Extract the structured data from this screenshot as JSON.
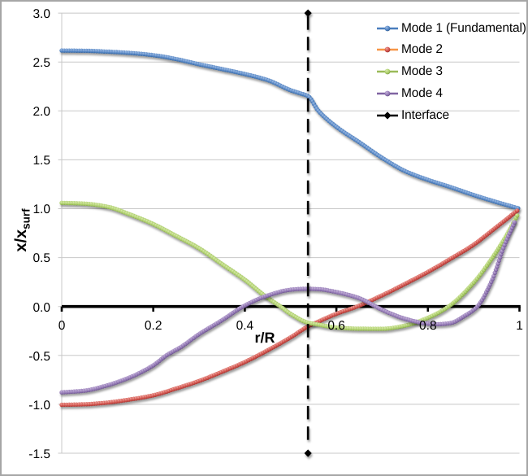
{
  "frame": {
    "background": "#ffffff",
    "border_color": "#a6a6a6"
  },
  "chart_data": {
    "type": "line",
    "xlabel": "r/R",
    "ylabel_main": "x/x",
    "ylabel_sub": "surf",
    "xlim": [
      0,
      1
    ],
    "ylim": [
      -1.5,
      3.0
    ],
    "grid": {
      "show": true,
      "color": "#c8c8c8",
      "y_step": 0.5
    },
    "axis_color": "#000000",
    "text_color": "#000000",
    "x_tick_values": [
      0,
      0.2,
      0.4,
      0.6,
      0.8,
      1
    ],
    "x_tick_labels": [
      "0",
      "0.2",
      "0.4",
      "0.6",
      "0.8",
      "1"
    ],
    "y_tick_values": [
      3.0,
      2.5,
      2.0,
      1.5,
      1.0,
      0.5,
      0.0,
      -0.5,
      -1.0,
      -1.5
    ],
    "y_tick_labels": [
      "3.0",
      "2.5",
      "2.0",
      "1.5",
      "1.0",
      "0.5",
      "0.0",
      "-0.5",
      "-1.0",
      "-1.5"
    ],
    "legend_position": "top-right",
    "marker_spacing_px": 2.85,
    "series": [
      {
        "name": "Mode 1 (Fundamental)",
        "line_color": "#4a7ebe",
        "marker_color": "#4a7ebe",
        "marker_light": "#84abdd",
        "marker_dark": "#30598c",
        "points": [
          [
            0,
            2.617
          ],
          [
            0.05,
            2.615
          ],
          [
            0.1,
            2.606
          ],
          [
            0.15,
            2.592
          ],
          [
            0.2,
            2.57
          ],
          [
            0.25,
            2.53
          ],
          [
            0.3,
            2.477
          ],
          [
            0.35,
            2.428
          ],
          [
            0.4,
            2.377
          ],
          [
            0.45,
            2.315
          ],
          [
            0.5,
            2.212
          ],
          [
            0.52,
            2.181
          ],
          [
            0.538,
            2.152
          ],
          [
            0.561,
            2.0
          ],
          [
            0.6,
            1.838
          ],
          [
            0.65,
            1.68
          ],
          [
            0.7,
            1.52
          ],
          [
            0.75,
            1.385
          ],
          [
            0.8,
            1.295
          ],
          [
            0.85,
            1.22
          ],
          [
            0.9,
            1.14
          ],
          [
            0.95,
            1.068
          ],
          [
            0.997,
            1.005
          ]
        ]
      },
      {
        "name": "Mode 2",
        "line_color": "#f79646",
        "marker_color": "#cc4b46",
        "marker_light": "#e2837d",
        "marker_dark": "#9c3834",
        "points": [
          [
            0,
            -1.005
          ],
          [
            0.05,
            -1.0
          ],
          [
            0.1,
            -0.982
          ],
          [
            0.15,
            -0.95
          ],
          [
            0.2,
            -0.908
          ],
          [
            0.25,
            -0.838
          ],
          [
            0.3,
            -0.761
          ],
          [
            0.35,
            -0.668
          ],
          [
            0.4,
            -0.567
          ],
          [
            0.45,
            -0.447
          ],
          [
            0.5,
            -0.315
          ],
          [
            0.538,
            -0.203
          ],
          [
            0.56,
            -0.155
          ],
          [
            0.6,
            -0.074
          ],
          [
            0.645,
            0
          ],
          [
            0.7,
            0.115
          ],
          [
            0.75,
            0.232
          ],
          [
            0.8,
            0.354
          ],
          [
            0.85,
            0.49
          ],
          [
            0.9,
            0.633
          ],
          [
            0.95,
            0.814
          ],
          [
            0.995,
            0.98
          ]
        ]
      },
      {
        "name": "Mode 3",
        "line_color": "#9bbb59",
        "marker_color": "#a8cc66",
        "marker_light": "#d2e8a3",
        "marker_dark": "#7a9a41",
        "points": [
          [
            0,
            1.06
          ],
          [
            0.05,
            1.052
          ],
          [
            0.1,
            1.02
          ],
          [
            0.15,
            0.94
          ],
          [
            0.2,
            0.843
          ],
          [
            0.25,
            0.722
          ],
          [
            0.3,
            0.596
          ],
          [
            0.35,
            0.435
          ],
          [
            0.4,
            0.274
          ],
          [
            0.445,
            0.105
          ],
          [
            0.478,
            0
          ],
          [
            0.5,
            -0.075
          ],
          [
            0.538,
            -0.165
          ],
          [
            0.561,
            -0.185
          ],
          [
            0.6,
            -0.215
          ],
          [
            0.65,
            -0.227
          ],
          [
            0.7,
            -0.228
          ],
          [
            0.75,
            -0.195
          ],
          [
            0.8,
            -0.115
          ],
          [
            0.845,
            0
          ],
          [
            0.9,
            0.245
          ],
          [
            0.928,
            0.414
          ],
          [
            0.97,
            0.715
          ],
          [
            0.995,
            0.93
          ]
        ]
      },
      {
        "name": "Mode 4",
        "line_color": "#8064a2",
        "marker_color": "#8e74b0",
        "marker_light": "#bcabd4",
        "marker_dark": "#644c85",
        "points": [
          [
            0,
            -0.878
          ],
          [
            0.05,
            -0.86
          ],
          [
            0.1,
            -0.805
          ],
          [
            0.15,
            -0.722
          ],
          [
            0.2,
            -0.601
          ],
          [
            0.23,
            -0.495
          ],
          [
            0.26,
            -0.415
          ],
          [
            0.3,
            -0.282
          ],
          [
            0.35,
            -0.14
          ],
          [
            0.396,
            0
          ],
          [
            0.445,
            0.105
          ],
          [
            0.5,
            0.172
          ],
          [
            0.53,
            0.181
          ],
          [
            0.56,
            0.178
          ],
          [
            0.6,
            0.148
          ],
          [
            0.65,
            0.085
          ],
          [
            0.686,
            0
          ],
          [
            0.7,
            -0.033
          ],
          [
            0.75,
            -0.125
          ],
          [
            0.79,
            -0.168
          ],
          [
            0.82,
            -0.181
          ],
          [
            0.85,
            -0.168
          ],
          [
            0.88,
            -0.096
          ],
          [
            0.9,
            -0.034
          ],
          [
            0.908,
            0
          ],
          [
            0.94,
            0.27
          ],
          [
            0.965,
            0.6
          ],
          [
            0.989,
            0.86
          ]
        ]
      }
    ],
    "interface_line": {
      "name": "Interface",
      "r": 0.538,
      "from": -1.5,
      "to": 3.0,
      "color": "#000000",
      "dash": [
        16.5,
        8.7
      ],
      "width": 2.6,
      "marker": "diamond",
      "marker_size": 4.6
    },
    "legend": [
      {
        "label": "Mode 1 (Fundamental)",
        "series": 0
      },
      {
        "label": "Mode 2",
        "series": 1
      },
      {
        "label": "Mode 3",
        "series": 2
      },
      {
        "label": "Mode 4",
        "series": 3
      },
      {
        "label": "Interface",
        "series": "interface"
      }
    ]
  }
}
